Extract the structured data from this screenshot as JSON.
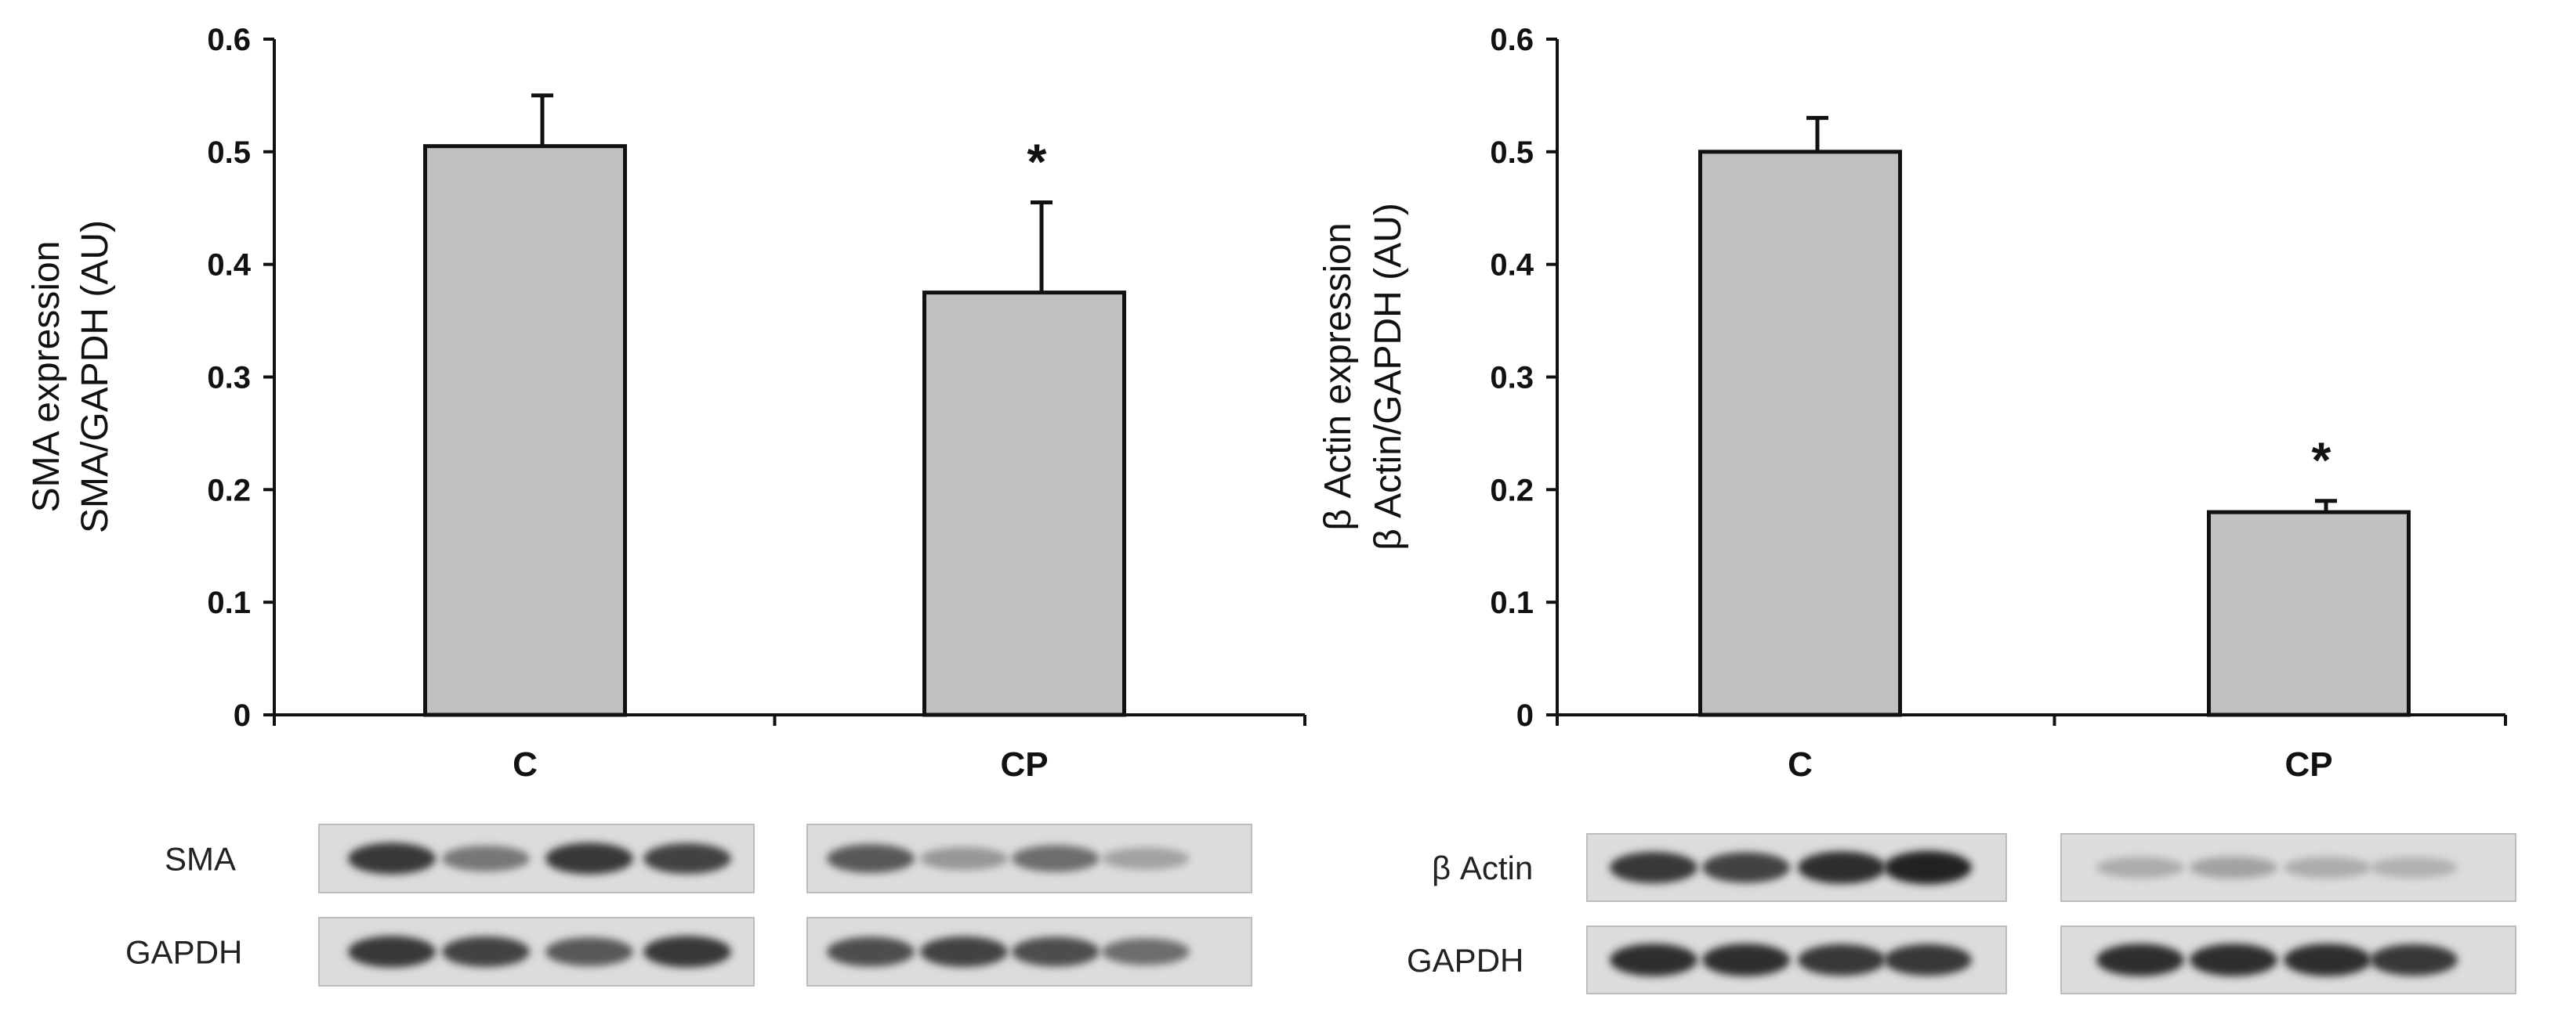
{
  "chart_data": [
    {
      "type": "bar",
      "categories": [
        "C",
        "CP"
      ],
      "values": [
        0.505,
        0.375
      ],
      "errors": [
        0.045,
        0.08
      ],
      "significance": [
        "",
        "*"
      ],
      "ylabel": [
        "SMA expression",
        "SMA/GAPDH (AU)"
      ],
      "ylim": [
        0,
        0.6
      ],
      "yticks": [
        "0",
        "0.1",
        "0.2",
        "0.3",
        "0.4",
        "0.5",
        "0.6"
      ],
      "grid": false,
      "bar_color": "#c0c0c0",
      "blots": {
        "rows": [
          {
            "label": "SMA",
            "band_intensity": [
              0.85,
              0.55,
              0.85,
              0.8,
              0.7,
              0.4,
              0.6,
              0.35
            ]
          },
          {
            "label": "GAPDH",
            "band_intensity": [
              0.85,
              0.8,
              0.7,
              0.85,
              0.75,
              0.8,
              0.75,
              0.6
            ]
          }
        ]
      }
    },
    {
      "type": "bar",
      "categories": [
        "C",
        "CP"
      ],
      "values": [
        0.5,
        0.18
      ],
      "errors": [
        0.03,
        0.01
      ],
      "significance": [
        "",
        "*"
      ],
      "ylabel": [
        "β Actin expression",
        "β Actin/GAPDH (AU)"
      ],
      "ylim": [
        0,
        0.6
      ],
      "yticks": [
        "0",
        "0.1",
        "0.2",
        "0.3",
        "0.4",
        "0.5",
        "0.6"
      ],
      "grid": false,
      "bar_color": "#c0c0c0",
      "blots": {
        "rows": [
          {
            "label": "β Actin",
            "band_intensity": [
              0.85,
              0.8,
              0.9,
              0.95,
              0.3,
              0.35,
              0.3,
              0.28
            ]
          },
          {
            "label": "GAPDH",
            "band_intensity": [
              0.9,
              0.9,
              0.85,
              0.85,
              0.9,
              0.9,
              0.9,
              0.85
            ]
          }
        ]
      }
    }
  ]
}
